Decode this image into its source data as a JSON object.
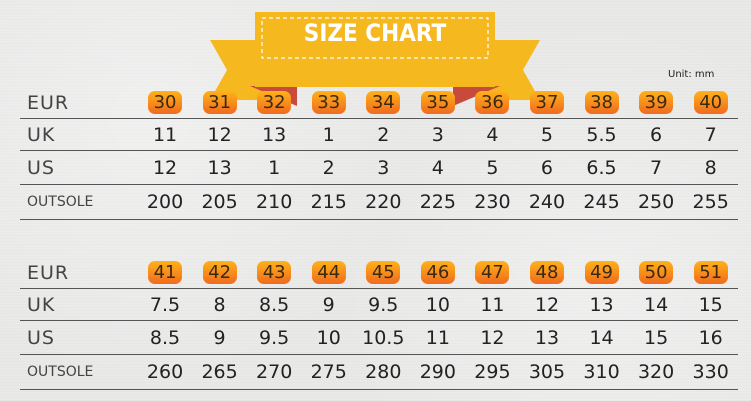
{
  "title": "SIZE CHART",
  "unit": "Unit:  mm",
  "colors": {
    "banner": "#f5b81f",
    "ribbon_fold": "#c84a3a",
    "badge_top": "#ffb21a",
    "badge_bottom": "#f06a1e"
  },
  "tables": [
    {
      "rows": [
        {
          "label": "EUR",
          "values": [
            "30",
            "31",
            "32",
            "33",
            "34",
            "35",
            "36",
            "37",
            "38",
            "39",
            "40"
          ]
        },
        {
          "label": "UK",
          "values": [
            "11",
            "12",
            "13",
            "1",
            "2",
            "3",
            "4",
            "5",
            "5.5",
            "6",
            "7"
          ]
        },
        {
          "label": "US",
          "values": [
            "12",
            "13",
            "1",
            "2",
            "3",
            "4",
            "5",
            "6",
            "6.5",
            "7",
            "8"
          ]
        },
        {
          "label": "OUTSOLE",
          "values": [
            "200",
            "205",
            "210",
            "215",
            "220",
            "225",
            "230",
            "240",
            "245",
            "250",
            "255"
          ]
        }
      ]
    },
    {
      "rows": [
        {
          "label": "EUR",
          "values": [
            "41",
            "42",
            "43",
            "44",
            "45",
            "46",
            "47",
            "48",
            "49",
            "50",
            "51"
          ]
        },
        {
          "label": "UK",
          "values": [
            "7.5",
            "8",
            "8.5",
            "9",
            "9.5",
            "10",
            "11",
            "12",
            "13",
            "14",
            "15"
          ]
        },
        {
          "label": "US",
          "values": [
            "8.5",
            "9",
            "9.5",
            "10",
            "10.5",
            "11",
            "12",
            "13",
            "14",
            "15",
            "16"
          ]
        },
        {
          "label": "OUTSOLE",
          "values": [
            "260",
            "265",
            "270",
            "275",
            "280",
            "290",
            "295",
            "305",
            "310",
            "320",
            "330"
          ]
        }
      ]
    }
  ]
}
